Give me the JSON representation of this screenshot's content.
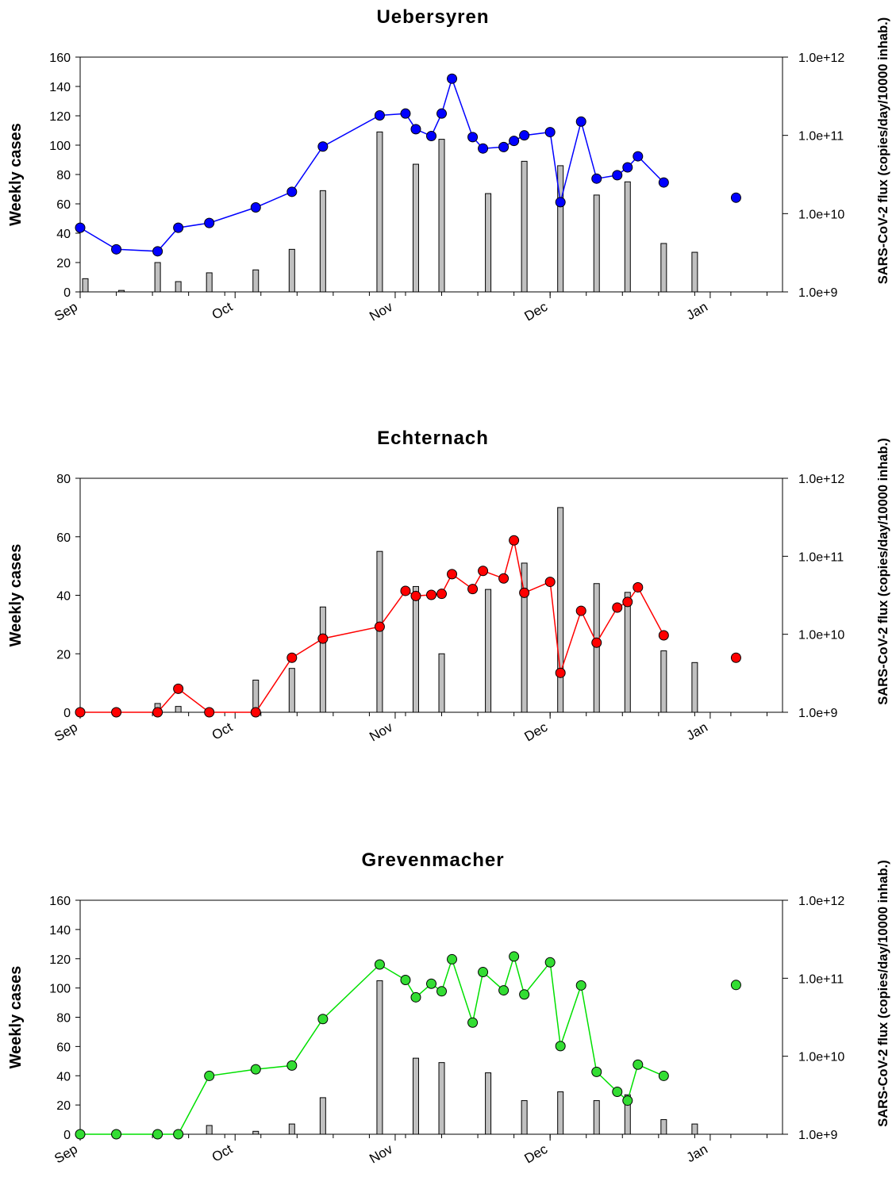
{
  "chart_data": [
    {
      "type": "bar+line",
      "title": "Uebersyren",
      "ylabel": "Weekly cases",
      "y2label": "SARS-CoV-2 flux (copies/day/10000 inhab.)",
      "ylim": [
        0,
        160
      ],
      "yticks": [
        0,
        20,
        40,
        60,
        80,
        100,
        120,
        140,
        160
      ],
      "y2lim": [
        1000000000.0,
        1000000000000.0
      ],
      "y2scale": "log",
      "y2ticks": [
        "1.0e+9",
        "1.0e+10",
        "1.0e+11",
        "1.0e+12"
      ],
      "xlim": [
        "2020-09-01",
        "2021-01-15"
      ],
      "xticks": [
        "Sep",
        "Oct",
        "Nov",
        "Dec",
        "Jan"
      ],
      "line_color": "#0000ff",
      "marker_color": "#0000ff",
      "bars": {
        "name": "Weekly cases",
        "x": [
          "2020-09-02",
          "2020-09-09",
          "2020-09-16",
          "2020-09-20",
          "2020-09-26",
          "2020-10-05",
          "2020-10-12",
          "2020-10-18",
          "2020-10-29",
          "2020-11-05",
          "2020-11-10",
          "2020-11-19",
          "2020-11-26",
          "2020-12-03",
          "2020-12-10",
          "2020-12-16",
          "2020-12-23",
          "2020-12-29"
        ],
        "values": [
          9,
          1,
          20,
          7,
          13,
          15,
          29,
          69,
          109,
          87,
          104,
          67,
          89,
          86,
          66,
          75,
          33,
          27
        ]
      },
      "line": {
        "name": "SARS-CoV-2 flux",
        "x": [
          "2020-09-01",
          "2020-09-08",
          "2020-09-16",
          "2020-09-20",
          "2020-09-26",
          "2020-10-05",
          "2020-10-12",
          "2020-10-18",
          "2020-10-29",
          "2020-11-03",
          "2020-11-05",
          "2020-11-08",
          "2020-11-10",
          "2020-11-12",
          "2020-11-16",
          "2020-11-18",
          "2020-11-22",
          "2020-11-24",
          "2020-11-26",
          "2020-12-01",
          "2020-12-03",
          "2020-12-07",
          "2020-12-10",
          "2020-12-14",
          "2020-12-16",
          "2020-12-18",
          "2020-12-23"
        ],
        "values": [
          6600000000.0,
          3500000000.0,
          3300000000.0,
          6600000000.0,
          7600000000.0,
          12000000000.0,
          19000000000.0,
          72000000000.0,
          180000000000.0,
          190000000000.0,
          120000000000.0,
          98000000000.0,
          190000000000.0,
          530000000000.0,
          95000000000.0,
          68000000000.0,
          71000000000.0,
          85000000000.0,
          100000000000.0,
          110000000000.0,
          14000000000.0,
          150000000000.0,
          28000000000.0,
          31000000000.0,
          39000000000.0,
          54000000000.0,
          25000000000.0
        ]
      },
      "extra_point": {
        "x": "2021-01-06",
        "value": 16000000000.0
      }
    },
    {
      "type": "bar+line",
      "title": "Echternach",
      "ylabel": "Weekly cases",
      "y2label": "SARS-CoV-2 flux (copies/day/10000 inhab.)",
      "ylim": [
        0,
        80
      ],
      "yticks": [
        0,
        20,
        40,
        60,
        80
      ],
      "y2lim": [
        1000000000.0,
        1000000000000.0
      ],
      "y2scale": "log",
      "y2ticks": [
        "1.0e+9",
        "1.0e+10",
        "1.0e+11",
        "1.0e+12"
      ],
      "xlim": [
        "2020-09-01",
        "2021-01-15"
      ],
      "xticks": [
        "Sep",
        "Oct",
        "Nov",
        "Dec",
        "Jan"
      ],
      "line_color": "#ff0000",
      "marker_color": "#ff0000",
      "bars": {
        "name": "Weekly cases",
        "x": [
          "2020-09-16",
          "2020-09-20",
          "2020-10-05",
          "2020-10-12",
          "2020-10-18",
          "2020-10-29",
          "2020-11-05",
          "2020-11-10",
          "2020-11-19",
          "2020-11-26",
          "2020-12-03",
          "2020-12-10",
          "2020-12-16",
          "2020-12-23",
          "2020-12-29"
        ],
        "values": [
          3,
          2,
          11,
          15,
          36,
          55,
          43,
          20,
          42,
          51,
          70,
          44,
          41,
          21,
          17
        ]
      },
      "line": {
        "name": "SARS-CoV-2 flux",
        "x": [
          "2020-09-01",
          "2020-09-08",
          "2020-09-16",
          "2020-09-20",
          "2020-09-26",
          "2020-10-05",
          "2020-10-12",
          "2020-10-18",
          "2020-10-29",
          "2020-11-03",
          "2020-11-05",
          "2020-11-08",
          "2020-11-10",
          "2020-11-12",
          "2020-11-16",
          "2020-11-18",
          "2020-11-22",
          "2020-11-24",
          "2020-11-26",
          "2020-12-01",
          "2020-12-03",
          "2020-12-07",
          "2020-12-10",
          "2020-12-14",
          "2020-12-16",
          "2020-12-18",
          "2020-12-23"
        ],
        "values": [
          1000000000.0,
          1000000000.0,
          1000000000.0,
          2000000000.0,
          1000000000.0,
          1000000000.0,
          5000000000.0,
          8800000000.0,
          12500000000.0,
          36000000000.0,
          31000000000.0,
          32000000000.0,
          33000000000.0,
          59000000000.0,
          38000000000.0,
          65000000000.0,
          52000000000.0,
          160000000000.0,
          34000000000.0,
          47000000000.0,
          3200000000.0,
          20000000000.0,
          7800000000.0,
          22000000000.0,
          26000000000.0,
          40000000000.0,
          9700000000.0
        ]
      },
      "extra_point": {
        "x": "2021-01-06",
        "value": 5000000000.0
      }
    },
    {
      "type": "bar+line",
      "title": "Grevenmacher",
      "ylabel": "Weekly cases",
      "y2label": "SARS-CoV-2 flux (copies/day/10000 inhab.)",
      "ylim": [
        0,
        160
      ],
      "yticks": [
        0,
        20,
        40,
        60,
        80,
        100,
        120,
        140,
        160
      ],
      "y2lim": [
        1000000000.0,
        1000000000000.0
      ],
      "y2scale": "log",
      "y2ticks": [
        "1.0e+9",
        "1.0e+10",
        "1.0e+11",
        "1.0e+12"
      ],
      "xlim": [
        "2020-09-01",
        "2021-01-15"
      ],
      "xticks": [
        "Sep",
        "Oct",
        "Nov",
        "Dec",
        "Jan"
      ],
      "line_color": "#00e000",
      "marker_color": "#33dd33",
      "bars": {
        "name": "Weekly cases",
        "x": [
          "2020-09-26",
          "2020-10-05",
          "2020-10-12",
          "2020-10-18",
          "2020-10-29",
          "2020-11-05",
          "2020-11-10",
          "2020-11-19",
          "2020-11-26",
          "2020-12-03",
          "2020-12-10",
          "2020-12-16",
          "2020-12-23",
          "2020-12-29"
        ],
        "values": [
          6,
          2,
          7,
          25,
          105,
          52,
          49,
          42,
          23,
          29,
          23,
          27,
          10,
          7
        ]
      },
      "line": {
        "name": "SARS-CoV-2 flux",
        "x": [
          "2020-09-01",
          "2020-09-08",
          "2020-09-16",
          "2020-09-20",
          "2020-09-26",
          "2020-10-05",
          "2020-10-12",
          "2020-10-18",
          "2020-10-29",
          "2020-11-03",
          "2020-11-05",
          "2020-11-08",
          "2020-11-10",
          "2020-11-12",
          "2020-11-16",
          "2020-11-18",
          "2020-11-22",
          "2020-11-24",
          "2020-11-26",
          "2020-12-01",
          "2020-12-03",
          "2020-12-07",
          "2020-12-10",
          "2020-12-14",
          "2020-12-16",
          "2020-12-18",
          "2020-12-23"
        ],
        "values": [
          1000000000.0,
          1000000000.0,
          1000000000.0,
          1000000000.0,
          5600000000.0,
          6800000000.0,
          7600000000.0,
          30000000000.0,
          150000000000.0,
          95000000000.0,
          57000000000.0,
          85000000000.0,
          68000000000.0,
          175000000000.0,
          27000000000.0,
          120000000000.0,
          70000000000.0,
          190000000000.0,
          62000000000.0,
          160000000000.0,
          13500000000.0,
          81000000000.0,
          6300000000.0,
          3500000000.0,
          2700000000.0,
          7800000000.0,
          5600000000.0
        ]
      },
      "extra_point": {
        "x": "2021-01-06",
        "value": 82000000000.0
      }
    }
  ]
}
